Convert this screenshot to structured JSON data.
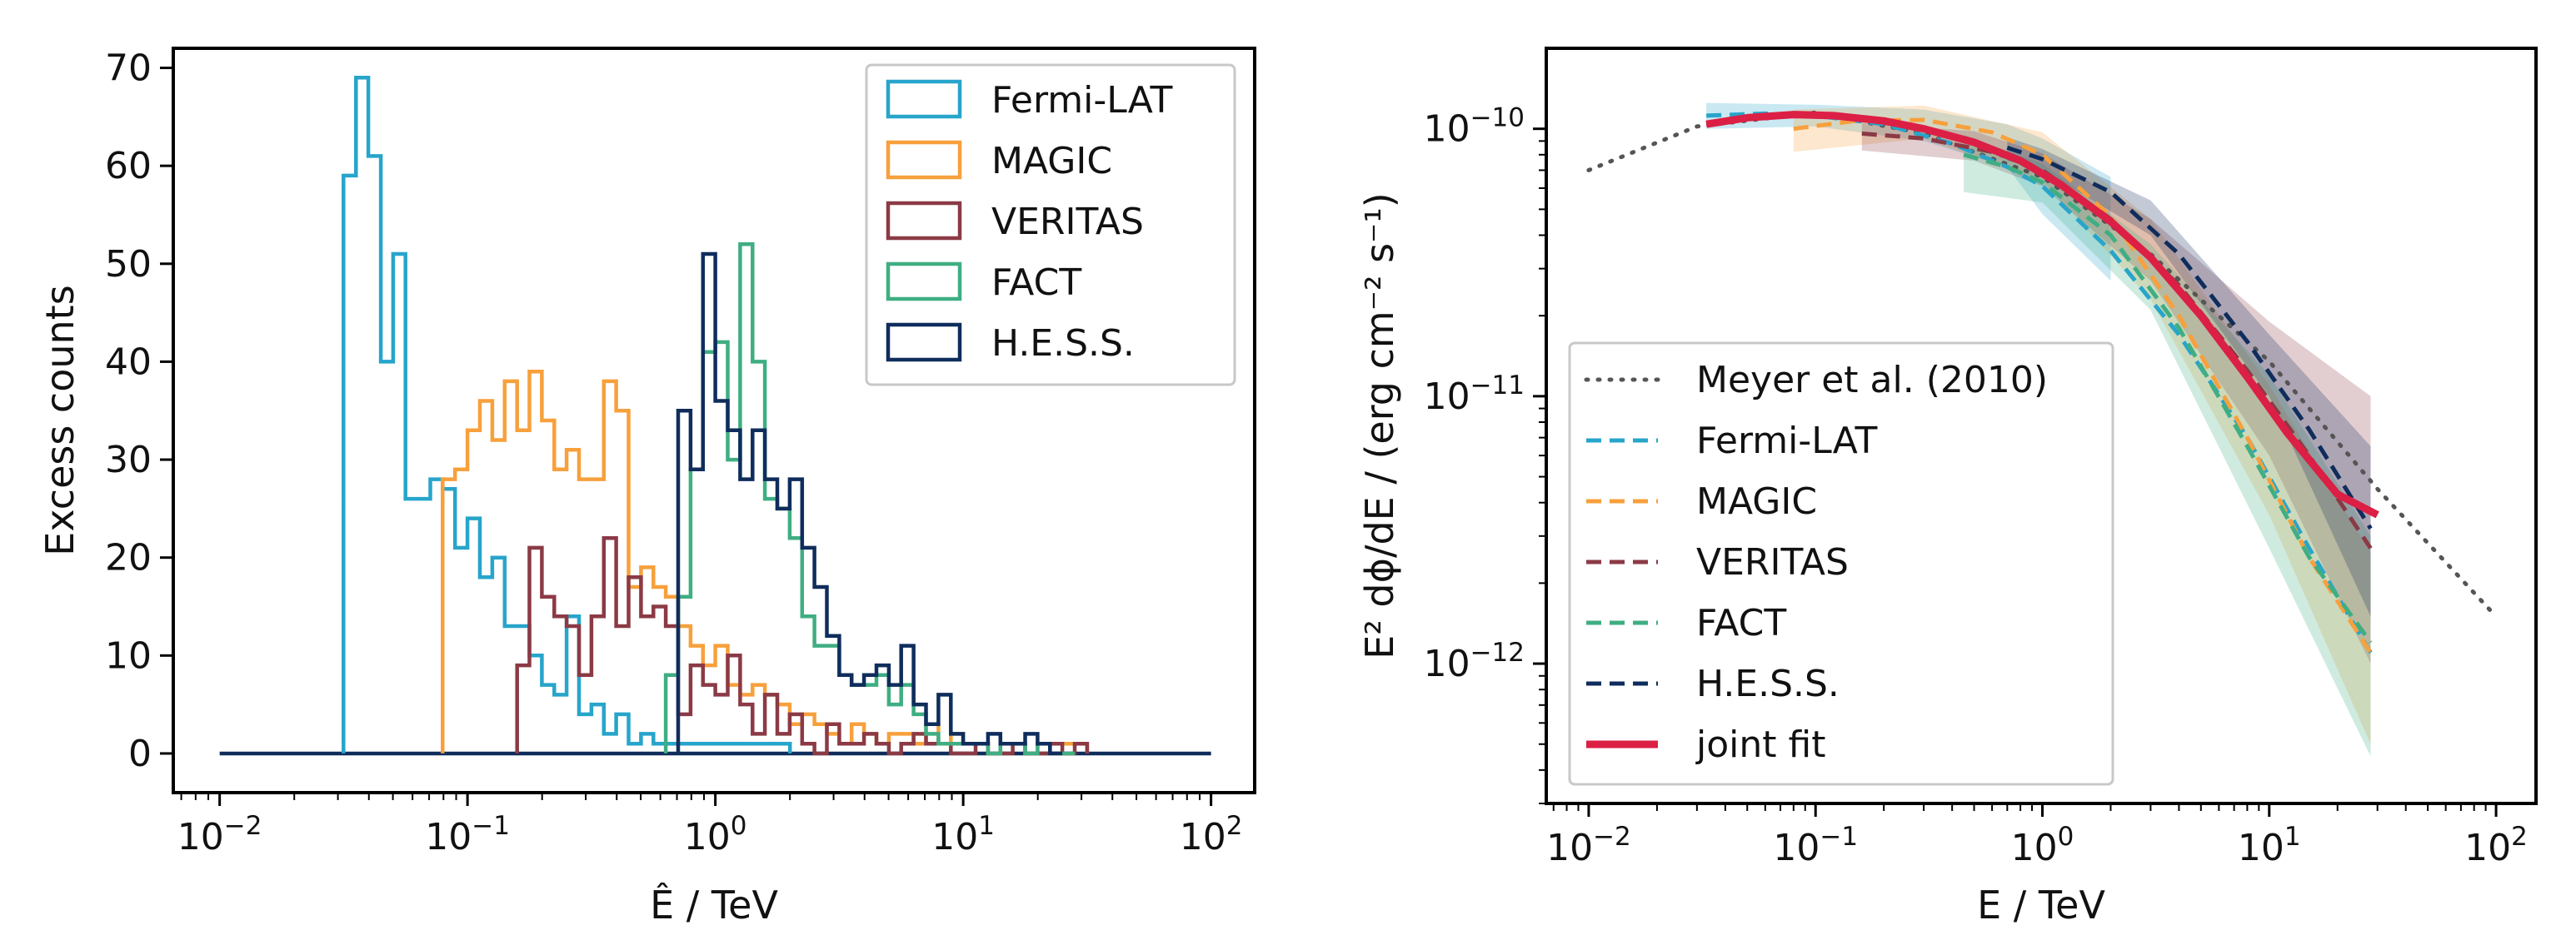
{
  "chart_data": [
    {
      "type": "histogram",
      "xscale": "log",
      "xlim": [
        0.0065,
        150
      ],
      "ylim": [
        -4,
        72
      ],
      "xlabel_symbol": "Ê",
      "xlabel_unit": "TeV",
      "ylabel": "Excess counts",
      "xticks": [
        {
          "base": "10",
          "exp": "−2",
          "value": 0.01
        },
        {
          "base": "10",
          "exp": "−1",
          "value": 0.1
        },
        {
          "base": "10",
          "exp": "0",
          "value": 1
        },
        {
          "base": "10",
          "exp": "1",
          "value": 10
        },
        {
          "base": "10",
          "exp": "2",
          "value": 100
        }
      ],
      "yticks": [
        0,
        10,
        20,
        30,
        40,
        50,
        60,
        70
      ],
      "legend_position": "top-right",
      "baseline": {
        "x": [
          0.01,
          100
        ],
        "y": 0
      },
      "series": [
        {
          "name": "Fermi-LAT",
          "color": "#27a5cb",
          "edges": [
            0.0316,
            0.0355,
            0.0398,
            0.0447,
            0.0501,
            0.0562,
            0.0631,
            0.0708,
            0.0794,
            0.0891,
            0.1,
            0.1122,
            0.1259,
            0.1413,
            0.1585,
            0.1778,
            0.1995,
            0.2239,
            0.2512,
            0.2818,
            0.3162,
            0.3548,
            0.3981,
            0.4467,
            0.5012,
            0.5623,
            0.631,
            0.7079,
            2.0
          ],
          "counts": [
            59,
            69,
            61,
            40,
            51,
            26,
            26,
            28,
            27,
            21,
            24,
            18,
            20,
            13,
            13,
            10,
            7,
            6,
            14,
            4,
            5,
            2,
            4,
            1,
            2,
            1,
            1,
            1
          ]
        },
        {
          "name": "MAGIC",
          "color": "#f7a03c",
          "edges": [
            0.0794,
            0.0891,
            0.1,
            0.1122,
            0.1259,
            0.1413,
            0.1585,
            0.1778,
            0.1995,
            0.2239,
            0.2512,
            0.2818,
            0.3162,
            0.3548,
            0.3981,
            0.4467,
            0.5012,
            0.5623,
            0.631,
            0.7079,
            0.7943,
            0.8913,
            1.0,
            1.122,
            1.259,
            1.413,
            1.585,
            1.778,
            1.995,
            2.239,
            2.512,
            2.818,
            3.162,
            3.548,
            3.981,
            4.467,
            5.012,
            5.623,
            6.31,
            7.079,
            7.943,
            8.913,
            10.0,
            11.22,
            12.59,
            14.13,
            15.85,
            17.78,
            19.95,
            22.39,
            25.12,
            28.18,
            31.62
          ],
          "counts": [
            28,
            29,
            33,
            36,
            32,
            38,
            33,
            39,
            34,
            29,
            31,
            28,
            28,
            38,
            35,
            17,
            19,
            17,
            16,
            13,
            11,
            9,
            11,
            7,
            6,
            7,
            6,
            5,
            3,
            4,
            3,
            2,
            1,
            3,
            2,
            1,
            2,
            2,
            1,
            3,
            1,
            2,
            1,
            1,
            0,
            1,
            1,
            0,
            1,
            1,
            1,
            1
          ]
        },
        {
          "name": "VERITAS",
          "color": "#8b3a45",
          "edges": [
            0.1585,
            0.1778,
            0.1995,
            0.2239,
            0.2512,
            0.2818,
            0.3162,
            0.3548,
            0.3981,
            0.4467,
            0.5012,
            0.5623,
            0.631,
            0.7079,
            0.7943,
            0.8913,
            1.0,
            1.122,
            1.259,
            1.413,
            1.585,
            1.778,
            1.995,
            2.239,
            2.512,
            2.818,
            3.162,
            3.548,
            3.981,
            4.467,
            5.012,
            5.623,
            6.31,
            7.079,
            7.943,
            8.913,
            10.0,
            11.22,
            12.59,
            14.13,
            15.85,
            17.78,
            19.95,
            22.39,
            25.12,
            28.18,
            31.62
          ],
          "counts": [
            9,
            21,
            16,
            14,
            13,
            8,
            14,
            22,
            13,
            18,
            14,
            15,
            13,
            4,
            9,
            7,
            6,
            10,
            5,
            2,
            6,
            2,
            4,
            1,
            0,
            3,
            1,
            1,
            2,
            1,
            0,
            1,
            2,
            1,
            1,
            0,
            0,
            1,
            0,
            0,
            1,
            0,
            0,
            1,
            0,
            1
          ]
        },
        {
          "name": "FACT",
          "color": "#3fae82",
          "edges": [
            0.631,
            0.7079,
            0.7943,
            0.8913,
            1.0,
            1.122,
            1.259,
            1.413,
            1.585,
            1.778,
            1.995,
            2.239,
            2.512,
            2.818,
            3.162,
            3.548,
            3.981,
            4.467,
            5.012,
            5.623,
            6.31,
            7.079,
            7.943,
            8.913,
            10.0,
            11.22,
            12.59,
            14.13,
            15.85,
            17.78,
            19.95,
            22.39,
            25.12,
            28.18
          ],
          "counts": [
            8,
            16,
            29,
            41,
            42,
            30,
            52,
            40,
            26,
            25,
            22,
            14,
            11,
            11,
            8,
            7,
            7,
            8,
            5,
            7,
            4,
            2,
            1,
            1,
            1,
            1,
            0,
            1,
            1,
            0,
            1,
            0,
            0
          ]
        },
        {
          "name": "H.E.S.S.",
          "color": "#0f2d5c",
          "edges": [
            0.7079,
            0.7943,
            0.8913,
            1.0,
            1.122,
            1.259,
            1.413,
            1.585,
            1.778,
            1.995,
            2.239,
            2.512,
            2.818,
            3.162,
            3.548,
            3.981,
            4.467,
            5.012,
            5.623,
            6.31,
            7.079,
            7.943,
            8.913,
            10.0,
            11.22,
            12.59,
            14.13,
            15.85,
            17.78,
            19.95,
            22.39,
            25.12
          ],
          "counts": [
            35,
            29,
            51,
            36,
            33,
            28,
            33,
            28,
            25,
            28,
            21,
            17,
            12,
            8,
            7,
            8,
            9,
            7,
            11,
            5,
            3,
            6,
            2,
            1,
            1,
            2,
            1,
            1,
            2,
            1,
            0
          ]
        }
      ]
    },
    {
      "type": "line",
      "xscale": "log",
      "yscale": "log",
      "xlim": [
        0.0065,
        150
      ],
      "ylim": [
        3e-13,
        2e-10
      ],
      "xlabel_symbol": "E",
      "xlabel_unit": "TeV",
      "ylabel": "E² dϕ/dE / (erg cm⁻² s⁻¹)",
      "xticks": [
        {
          "base": "10",
          "exp": "−2",
          "value": 0.01
        },
        {
          "base": "10",
          "exp": "−1",
          "value": 0.1
        },
        {
          "base": "10",
          "exp": "0",
          "value": 1
        },
        {
          "base": "10",
          "exp": "1",
          "value": 10
        },
        {
          "base": "10",
          "exp": "2",
          "value": 100
        }
      ],
      "yticks": [
        {
          "base": "10",
          "exp": "−10",
          "value": 1e-10
        },
        {
          "base": "10",
          "exp": "−11",
          "value": 1e-11
        },
        {
          "base": "10",
          "exp": "−12",
          "value": 1e-12
        }
      ],
      "legend_position": "lower-left",
      "series": [
        {
          "name": "Meyer et al. (2010)",
          "color": "#555555",
          "style": "dotted",
          "x": [
            0.01,
            0.03,
            0.1,
            0.3,
            1,
            3,
            10,
            30,
            100
          ],
          "y": [
            7e-11,
            1.02e-10,
            1.15e-10,
            9.6e-11,
            6.6e-11,
            3.4e-11,
            1.35e-11,
            4.5e-12,
            1.5e-12
          ]
        },
        {
          "name": "Fermi-LAT",
          "color": "#27a5cb",
          "style": "dashed",
          "x": [
            0.033,
            0.06,
            0.1,
            0.2,
            0.4,
            0.7,
            1,
            2,
            4,
            8,
            15,
            28
          ],
          "y": [
            1.12e-10,
            1.14e-10,
            1.12e-10,
            1.04e-10,
            8.8e-11,
            7.2e-11,
            6.1e-11,
            3.5e-11,
            1.7e-11,
            7e-12,
            2.7e-12,
            1.1e-12
          ],
          "band": {
            "x": [
              0.033,
              0.1,
              0.3,
              0.7,
              1,
              2
            ],
            "lo": [
              1e-10,
              1.02e-10,
              9e-11,
              7.2e-11,
              4.8e-11,
              2.7e-11
            ],
            "hi": [
              1.25e-10,
              1.23e-10,
              1.18e-10,
              1.04e-10,
              9.2e-11,
              6.6e-11
            ]
          }
        },
        {
          "name": "MAGIC",
          "color": "#f7a03c",
          "style": "dashed",
          "x": [
            0.08,
            0.15,
            0.3,
            0.6,
            1,
            2,
            4,
            8,
            15,
            28
          ],
          "y": [
            1e-10,
            1.07e-10,
            1.08e-10,
            9.7e-11,
            8e-11,
            4.7e-11,
            2e-11,
            7e-12,
            2.5e-12,
            1.1e-12
          ],
          "band": {
            "x": [
              0.08,
              0.3,
              1,
              3,
              10,
              28
            ],
            "lo": [
              8.2e-11,
              9.2e-11,
              6.4e-11,
              2.3e-11,
              3.6e-12,
              5e-13
            ],
            "hi": [
              1.18e-10,
              1.22e-10,
              9.7e-11,
              4.6e-11,
              1.1e-11,
              2.6e-12
            ]
          }
        },
        {
          "name": "VERITAS",
          "color": "#8b3a45",
          "style": "dashed",
          "x": [
            0.16,
            0.3,
            0.6,
            1,
            2,
            4,
            8,
            15,
            28
          ],
          "y": [
            9.6e-11,
            9.2e-11,
            8.2e-11,
            7e-11,
            4.6e-11,
            2.6e-11,
            1.25e-11,
            6e-12,
            2.7e-12
          ],
          "band": {
            "x": [
              0.16,
              0.5,
              1,
              3,
              10,
              28
            ],
            "lo": [
              8.3e-11,
              7.6e-11,
              6.1e-11,
              2.7e-11,
              6e-12,
              1e-12
            ],
            "hi": [
              1.05e-10,
              9.8e-11,
              8.1e-11,
              4.6e-11,
              1.9e-11,
              1e-11
            ]
          }
        },
        {
          "name": "FACT",
          "color": "#3fae82",
          "style": "dashed",
          "x": [
            0.45,
            0.7,
            1,
            2,
            4,
            8,
            15,
            28
          ],
          "y": [
            8e-11,
            7.2e-11,
            6.3e-11,
            4e-11,
            1.8e-11,
            6.5e-12,
            2.5e-12,
            1.2e-12
          ],
          "band": {
            "x": [
              0.45,
              1,
              3,
              10,
              28
            ],
            "lo": [
              5.8e-11,
              5.3e-11,
              2.1e-11,
              2.7e-12,
              4.5e-13
            ],
            "hi": [
              9.5e-11,
              7.4e-11,
              3.7e-11,
              1.2e-11,
              3e-12
            ]
          }
        },
        {
          "name": "H.E.S.S.",
          "color": "#0f2d5c",
          "style": "dashed",
          "x": [
            0.7,
            1,
            2,
            4,
            8,
            15,
            28
          ],
          "y": [
            8.5e-11,
            7.7e-11,
            5.8e-11,
            3.4e-11,
            1.6e-11,
            7.5e-12,
            3.2e-12
          ],
          "band": {
            "x": [
              0.7,
              1,
              3,
              10,
              28
            ],
            "lo": [
              7.6e-11,
              7e-11,
              4e-11,
              1e-11,
              1.5e-12
            ],
            "hi": [
              9.3e-11,
              8.4e-11,
              5.4e-11,
              1.7e-11,
              6.5e-12
            ]
          }
        },
        {
          "name": "joint fit",
          "color": "#dc1f45",
          "style": "solid",
          "x": [
            0.033,
            0.05,
            0.08,
            0.12,
            0.2,
            0.3,
            0.5,
            0.8,
            1.2,
            2,
            3,
            5,
            8,
            12,
            20,
            30
          ],
          "y": [
            1.04e-10,
            1.1e-10,
            1.13e-10,
            1.12e-10,
            1.07e-10,
            1e-10,
            8.9e-11,
            7.6e-11,
            6.2e-11,
            4.5e-11,
            3.3e-11,
            2e-11,
            1.18e-11,
            7.3e-12,
            4.3e-12,
            3.6e-12
          ]
        }
      ]
    }
  ]
}
